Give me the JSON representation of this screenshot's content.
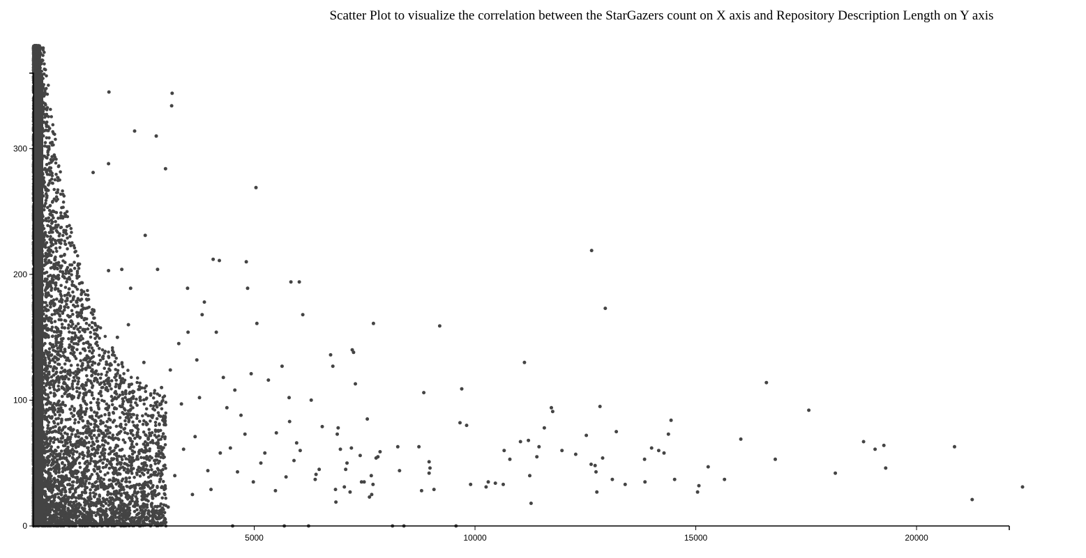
{
  "chart_data": {
    "type": "scatter",
    "title": "Scatter Plot to visualize the correlation between the StarGazers count on X axis and Repository Description Length on Y axis",
    "xlabel": "",
    "ylabel": "",
    "xlim": [
      0,
      22100
    ],
    "ylim": [
      0,
      360
    ],
    "x_ticks": [
      5000,
      10000,
      15000,
      20000
    ],
    "y_ticks": [
      0,
      100,
      200,
      300
    ],
    "grid": false,
    "point_color": "#444444",
    "dense_region": {
      "note_values": "thousands of points concentrated at x 0–3000, y 0–380",
      "x_range": [
        0,
        3000
      ],
      "y_range": [
        0,
        380
      ]
    },
    "points": [
      [
        12640,
        219
      ],
      [
        12950,
        173
      ],
      [
        16600,
        114
      ],
      [
        17560,
        92
      ],
      [
        18800,
        67
      ],
      [
        19060,
        61
      ],
      [
        19260,
        64
      ],
      [
        19300,
        46
      ],
      [
        20860,
        63
      ],
      [
        21260,
        21
      ],
      [
        22400,
        31
      ],
      [
        18160,
        42
      ],
      [
        16800,
        53
      ],
      [
        16020,
        69
      ],
      [
        15650,
        37
      ],
      [
        15280,
        47
      ],
      [
        15070,
        32
      ],
      [
        15040,
        27
      ],
      [
        14520,
        37
      ],
      [
        14440,
        84
      ],
      [
        14380,
        73
      ],
      [
        14280,
        58
      ],
      [
        14160,
        60
      ],
      [
        14000,
        62
      ],
      [
        13850,
        35
      ],
      [
        13840,
        53
      ],
      [
        13400,
        33
      ],
      [
        13200,
        75
      ],
      [
        13110,
        37
      ],
      [
        12890,
        54
      ],
      [
        12830,
        95
      ],
      [
        12760,
        27
      ],
      [
        12740,
        43
      ],
      [
        12720,
        48
      ],
      [
        12630,
        49
      ],
      [
        12520,
        72
      ],
      [
        12280,
        57
      ],
      [
        11970,
        60
      ],
      [
        11760,
        91
      ],
      [
        11730,
        94
      ],
      [
        11570,
        78
      ],
      [
        11450,
        63
      ],
      [
        11400,
        55
      ],
      [
        11270,
        18
      ],
      [
        11240,
        40
      ],
      [
        11210,
        68
      ],
      [
        11120,
        130
      ],
      [
        11030,
        67
      ],
      [
        10790,
        53
      ],
      [
        10660,
        60
      ],
      [
        10640,
        33
      ],
      [
        10460,
        34
      ],
      [
        10300,
        35
      ],
      [
        10250,
        31
      ],
      [
        9900,
        33
      ],
      [
        9810,
        80
      ],
      [
        9700,
        109
      ],
      [
        9660,
        82
      ],
      [
        9570,
        0
      ],
      [
        9200,
        159
      ],
      [
        9070,
        29
      ],
      [
        8980,
        46
      ],
      [
        8960,
        42
      ],
      [
        8960,
        51
      ],
      [
        8840,
        106
      ],
      [
        8790,
        28
      ],
      [
        8730,
        63
      ],
      [
        8390,
        0
      ],
      [
        8290,
        44
      ],
      [
        8250,
        63
      ],
      [
        8130,
        0
      ],
      [
        7850,
        59
      ],
      [
        7760,
        54
      ],
      [
        7700,
        161
      ],
      [
        7690,
        33
      ],
      [
        7660,
        25
      ],
      [
        7650,
        40
      ],
      [
        7610,
        23
      ],
      [
        7560,
        85
      ],
      [
        7490,
        35
      ],
      [
        7430,
        35
      ],
      [
        7400,
        56
      ],
      [
        7290,
        113
      ],
      [
        7250,
        138
      ],
      [
        7220,
        140
      ],
      [
        7200,
        62
      ],
      [
        7170,
        27
      ],
      [
        7100,
        50
      ],
      [
        7070,
        45
      ],
      [
        6950,
        61
      ],
      [
        6880,
        73
      ],
      [
        6850,
        19
      ],
      [
        6840,
        29
      ],
      [
        6780,
        127
      ],
      [
        6730,
        136
      ],
      [
        6540,
        79
      ],
      [
        6380,
        37
      ],
      [
        6230,
        0
      ],
      [
        6100,
        168
      ],
      [
        6020,
        194
      ],
      [
        5960,
        66
      ],
      [
        5830,
        194
      ],
      [
        5800,
        83
      ],
      [
        5790,
        102
      ],
      [
        5680,
        0
      ],
      [
        5630,
        127
      ],
      [
        5320,
        116
      ],
      [
        5060,
        161
      ],
      [
        5040,
        269
      ],
      [
        4930,
        121
      ],
      [
        4850,
        189
      ],
      [
        4820,
        210
      ],
      [
        4510,
        0
      ],
      [
        4210,
        211
      ],
      [
        4070,
        212
      ],
      [
        3870,
        178
      ],
      [
        3820,
        168
      ],
      [
        3490,
        189
      ],
      [
        3500,
        154
      ],
      [
        3140,
        344
      ],
      [
        3130,
        334
      ],
      [
        2990,
        284
      ],
      [
        2810,
        204
      ],
      [
        2780,
        310
      ],
      [
        2290,
        314
      ],
      [
        2000,
        204
      ],
      [
        1710,
        345
      ],
      [
        1700,
        288
      ],
      [
        1350,
        281
      ],
      [
        1700,
        203
      ],
      [
        2200,
        189
      ],
      [
        2530,
        231
      ],
      [
        4140,
        154
      ],
      [
        3290,
        145
      ],
      [
        3760,
        102
      ],
      [
        4380,
        94
      ],
      [
        4620,
        43
      ],
      [
        5500,
        74
      ],
      [
        5900,
        52
      ],
      [
        6290,
        100
      ],
      [
        6400,
        41
      ],
      [
        6900,
        78
      ],
      [
        7040,
        31
      ],
      [
        7800,
        55
      ],
      [
        4700,
        88
      ],
      [
        4460,
        62
      ],
      [
        4230,
        58
      ],
      [
        3950,
        44
      ],
      [
        3660,
        71
      ],
      [
        3400,
        61
      ],
      [
        3200,
        40
      ],
      [
        2960,
        83
      ],
      [
        2740,
        52
      ],
      [
        2600,
        69
      ],
      [
        2400,
        33
      ],
      [
        2210,
        48
      ],
      [
        2050,
        77
      ],
      [
        1880,
        64
      ],
      [
        4980,
        35
      ],
      [
        5240,
        58
      ],
      [
        5480,
        28
      ],
      [
        5720,
        39
      ],
      [
        6040,
        60
      ],
      [
        6470,
        45
      ],
      [
        4020,
        29
      ],
      [
        3600,
        25
      ],
      [
        3050,
        15
      ],
      [
        2700,
        22
      ],
      [
        2300,
        30
      ],
      [
        2900,
        110
      ],
      [
        3100,
        124
      ],
      [
        3350,
        97
      ],
      [
        3700,
        132
      ],
      [
        4300,
        118
      ],
      [
        4560,
        108
      ],
      [
        4790,
        73
      ],
      [
        5150,
        50
      ],
      [
        2500,
        130
      ],
      [
        2150,
        160
      ],
      [
        1900,
        150
      ]
    ]
  }
}
